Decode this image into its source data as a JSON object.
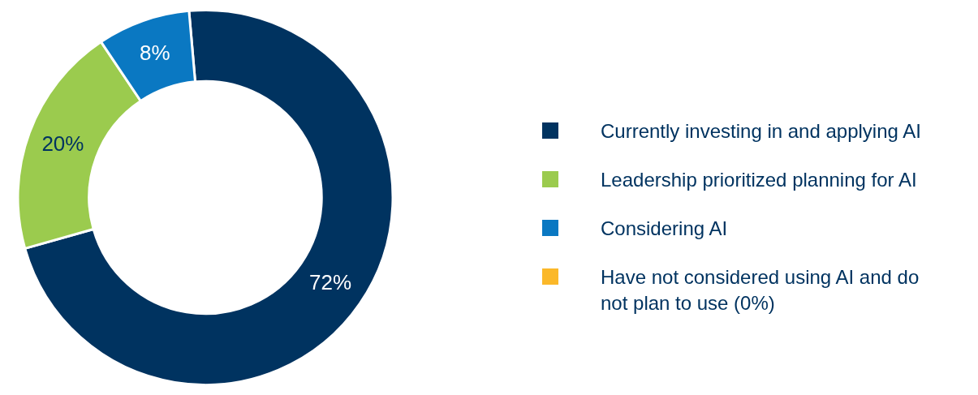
{
  "chart_data": {
    "type": "donut",
    "categories": [
      "Currently investing in and applying AI",
      "Leadership prioritized planning for AI",
      "Considering AI",
      "Have not considered using AI and do not plan to use (0%)"
    ],
    "values": [
      72,
      20,
      8,
      0
    ],
    "colors": [
      "#003360",
      "#9bcb4e",
      "#0a78c2",
      "#fbb829"
    ],
    "value_labels": [
      "72%",
      "20%",
      "8%",
      null
    ],
    "legend": "right"
  }
}
